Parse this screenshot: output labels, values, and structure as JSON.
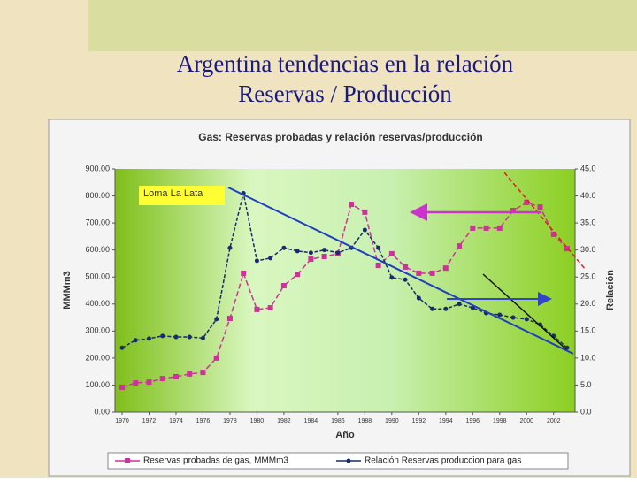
{
  "slide_title": "Argentina tendencias en la relación Reservas / Producción",
  "annotation": "Loma La Lata",
  "chart_data": {
    "type": "line",
    "title": "Gas: Reservas probadas y relación reservas/producción",
    "x_label": "Año",
    "y_label": "MMMm3",
    "y2_label": "Relación",
    "x": [
      1970,
      1971,
      1972,
      1973,
      1974,
      1975,
      1976,
      1977,
      1978,
      1979,
      1980,
      1981,
      1982,
      1983,
      1984,
      1985,
      1986,
      1987,
      1988,
      1989,
      1990,
      1991,
      1992,
      1993,
      1994,
      1995,
      1996,
      1997,
      1998,
      1999,
      2000,
      2001,
      2002,
      2003
    ],
    "xlim": [
      1970,
      2003
    ],
    "xticks": [
      1970,
      1972,
      1974,
      1976,
      1978,
      1980,
      1982,
      1984,
      1986,
      1988,
      1990,
      1992,
      1994,
      1996,
      1998,
      2000,
      2002
    ],
    "ylim": [
      0,
      900
    ],
    "yticks": [
      {
        "value": 0,
        "label": "0.00"
      },
      {
        "value": 100,
        "label": "100.00"
      },
      {
        "value": 200,
        "label": "200.00"
      },
      {
        "value": 300,
        "label": "300.00"
      },
      {
        "value": 400,
        "label": "400.00"
      },
      {
        "value": 500,
        "label": "500.00"
      },
      {
        "value": 600,
        "label": "600.00"
      },
      {
        "value": 700,
        "label": "700.00"
      },
      {
        "value": 800,
        "label": "800.00"
      },
      {
        "value": 900,
        "label": "900.00"
      }
    ],
    "y2lim": [
      0,
      45
    ],
    "y2ticks": [
      {
        "value": 0,
        "label": "0.0"
      },
      {
        "value": 5,
        "label": "5.0"
      },
      {
        "value": 10,
        "label": "10.0"
      },
      {
        "value": 15,
        "label": "15.0"
      },
      {
        "value": 20,
        "label": "20.0"
      },
      {
        "value": 25,
        "label": "25.0"
      },
      {
        "value": 30,
        "label": "30.0"
      },
      {
        "value": 35,
        "label": "35.0"
      },
      {
        "value": 40,
        "label": "40.0"
      },
      {
        "value": 45,
        "label": "45.0"
      }
    ],
    "series": [
      {
        "name": "Reservas probadas de gas, MMMm3",
        "color": "#cc3399",
        "marker": "square",
        "values": [
          92,
          108,
          111,
          124,
          131,
          141,
          147,
          200,
          347,
          514,
          380,
          386,
          468,
          510,
          566,
          576,
          586,
          769,
          740,
          543,
          586,
          537,
          514,
          514,
          533,
          615,
          681,
          681,
          681,
          746,
          776,
          759,
          658,
          605
        ]
      },
      {
        "name": "Relación Reservas produccion para gas",
        "color": "#1a2a6c",
        "marker": "circle",
        "axis": "y2",
        "values": [
          11.9,
          13.3,
          13.6,
          14.1,
          13.9,
          13.9,
          13.7,
          17.2,
          30.4,
          40.5,
          28,
          28.5,
          30.4,
          29.8,
          29.5,
          30,
          29.5,
          30.4,
          33.7,
          30.4,
          24.9,
          24.5,
          21.1,
          19.1,
          19.1,
          20,
          19.3,
          18.3,
          18,
          17.5,
          17.2,
          16.2,
          14.1,
          11.9
        ]
      }
    ]
  }
}
